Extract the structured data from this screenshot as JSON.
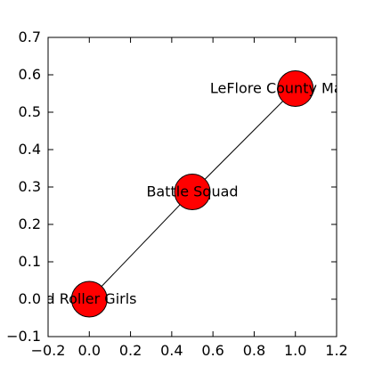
{
  "chart_data": {
    "type": "scatter",
    "title": "",
    "xlabel": "",
    "ylabel": "",
    "xlim": [
      -0.2,
      1.2
    ],
    "ylim": [
      -0.1,
      0.7
    ],
    "xticks": [
      -0.2,
      0.0,
      0.2,
      0.4,
      0.6,
      0.8,
      1.0,
      1.2
    ],
    "yticks": [
      -0.1,
      0.0,
      0.1,
      0.2,
      0.3,
      0.4,
      0.5,
      0.6,
      0.7
    ],
    "xtick_labels": [
      "−0.2",
      "0.0",
      "0.2",
      "0.4",
      "0.6",
      "0.8",
      "1.0",
      "1.2"
    ],
    "ytick_labels": [
      "−0.1",
      "0.0",
      "0.1",
      "0.2",
      "0.3",
      "0.4",
      "0.5",
      "0.6",
      "0.7"
    ],
    "grid": false,
    "node_color": "#ff0000",
    "edge_color": "#000000",
    "nodes": [
      {
        "label": "id Roller Girls",
        "x": 0.0,
        "y": 0.0
      },
      {
        "label": "Battle Squad",
        "x": 0.5,
        "y": 0.287
      },
      {
        "label": "LeFlore County Maidens",
        "x": 1.0,
        "y": 0.563
      }
    ],
    "edges": [
      [
        0,
        1
      ],
      [
        1,
        2
      ]
    ]
  }
}
